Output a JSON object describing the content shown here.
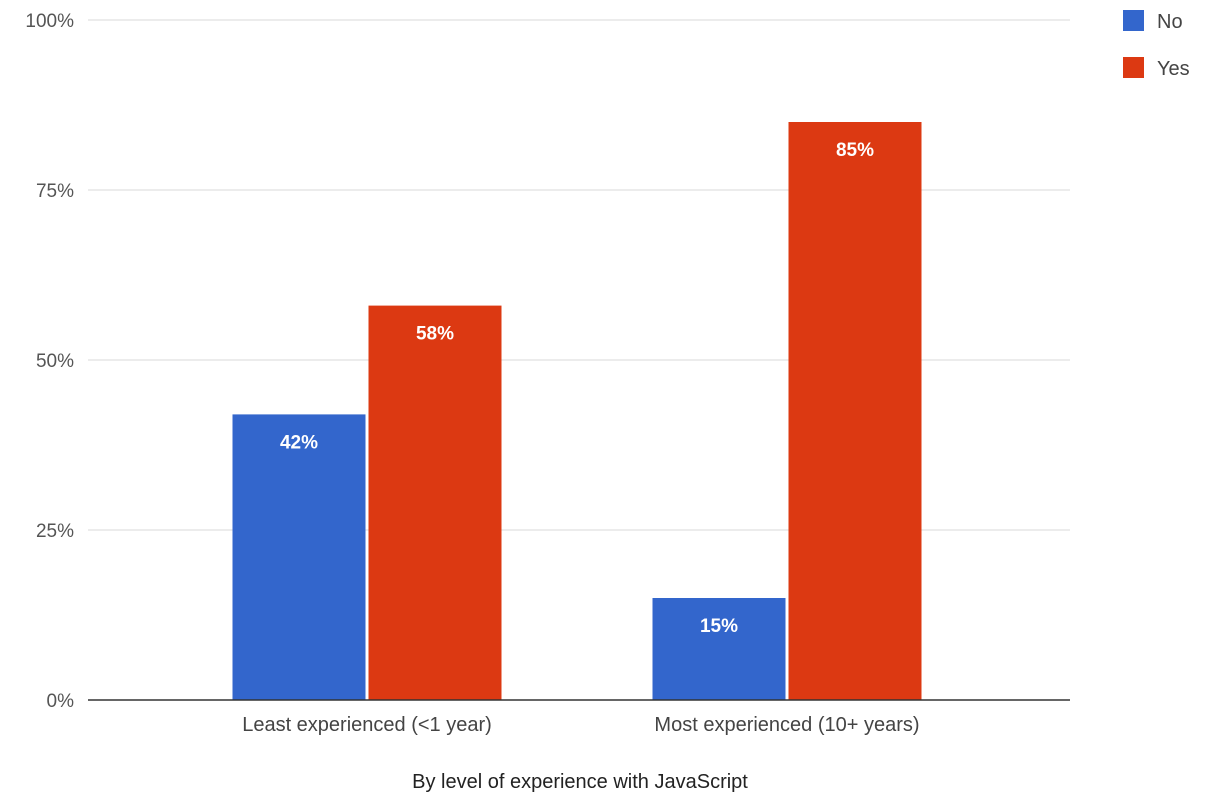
{
  "chart_data": {
    "type": "bar",
    "categories": [
      "Least experienced (<1 year)",
      "Most experienced (10+ years)"
    ],
    "series": [
      {
        "name": "No",
        "values": [
          42,
          15
        ],
        "labels": [
          "42%",
          "15%"
        ],
        "color": "#3366cc"
      },
      {
        "name": "Yes",
        "values": [
          58,
          85
        ],
        "labels": [
          "58%",
          "85%"
        ],
        "color": "#dc3912"
      }
    ],
    "title": "",
    "xlabel": "By level of experience with JavaScript",
    "ylabel": "",
    "ylim": [
      0,
      100
    ],
    "yticks": [
      0,
      25,
      50,
      75,
      100
    ],
    "ytick_labels": [
      "0%",
      "25%",
      "50%",
      "75%",
      "100%"
    ],
    "grid": true,
    "legend_position": "top-right"
  }
}
